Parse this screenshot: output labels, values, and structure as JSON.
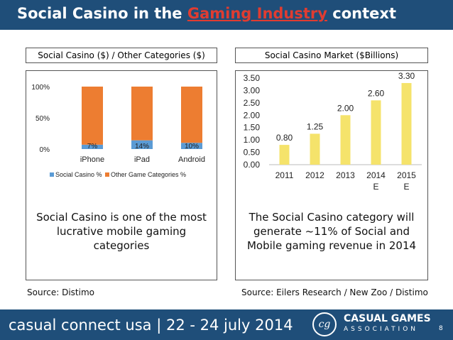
{
  "header": {
    "title_before": "Social Casino in the ",
    "title_highlight": "Gaming Industry",
    "title_after": " context"
  },
  "left": {
    "label": "Social Casino ($) / Other Categories ($)",
    "description": "Social Casino is one of the most lucrative mobile gaming categories",
    "source": "Source: Distimo"
  },
  "right": {
    "label": "Social Casino Market ($Billions)",
    "description": "The Social Casino category will generate ~11% of Social and Mobile gaming revenue in 2014",
    "source": "Source: Eilers Research / New Zoo / Distimo"
  },
  "footer": {
    "event": "casual connect usa | 22 - 24 july 2014",
    "logo_monogram": "cg",
    "logo_line1": "CASUAL GAMES",
    "logo_line2": "ASSOCIATION",
    "page_number": "8"
  },
  "colors": {
    "header_bg": "#1f4e79",
    "highlight": "#e03c31",
    "social_casino": "#5b9bd5",
    "other_categories": "#ed7d31",
    "market_bar": "#f5e36b"
  },
  "chart_data": [
    {
      "type": "bar",
      "stacked": true,
      "percent": true,
      "categories": [
        "iPhone",
        "iPad",
        "Android"
      ],
      "series": [
        {
          "name": "Social Casino %",
          "values": [
            7,
            14,
            10
          ],
          "labels": [
            "7%",
            "14%",
            "10%"
          ]
        },
        {
          "name": "Other Game Categories %",
          "values": [
            93,
            86,
            90
          ]
        }
      ],
      "yticks": [
        "0%",
        "50%",
        "100%"
      ],
      "ylim": [
        0,
        100
      ],
      "legend": "bottom",
      "grid": false
    },
    {
      "type": "bar",
      "categories": [
        "2011",
        "2012",
        "2013",
        "2014 E",
        "2015 E"
      ],
      "category_lines": [
        [
          "2011"
        ],
        [
          "2012"
        ],
        [
          "2013"
        ],
        [
          "2014",
          "E"
        ],
        [
          "2015",
          "E"
        ]
      ],
      "values": [
        0.8,
        1.25,
        2.0,
        2.6,
        3.3
      ],
      "labels": [
        "0.80",
        "1.25",
        "2.00",
        "2.60",
        "3.30"
      ],
      "yticks": [
        "0.00",
        "0.50",
        "1.00",
        "1.50",
        "2.00",
        "2.50",
        "3.00",
        "3.50"
      ],
      "ylim": [
        0,
        3.5
      ],
      "grid": false
    }
  ]
}
